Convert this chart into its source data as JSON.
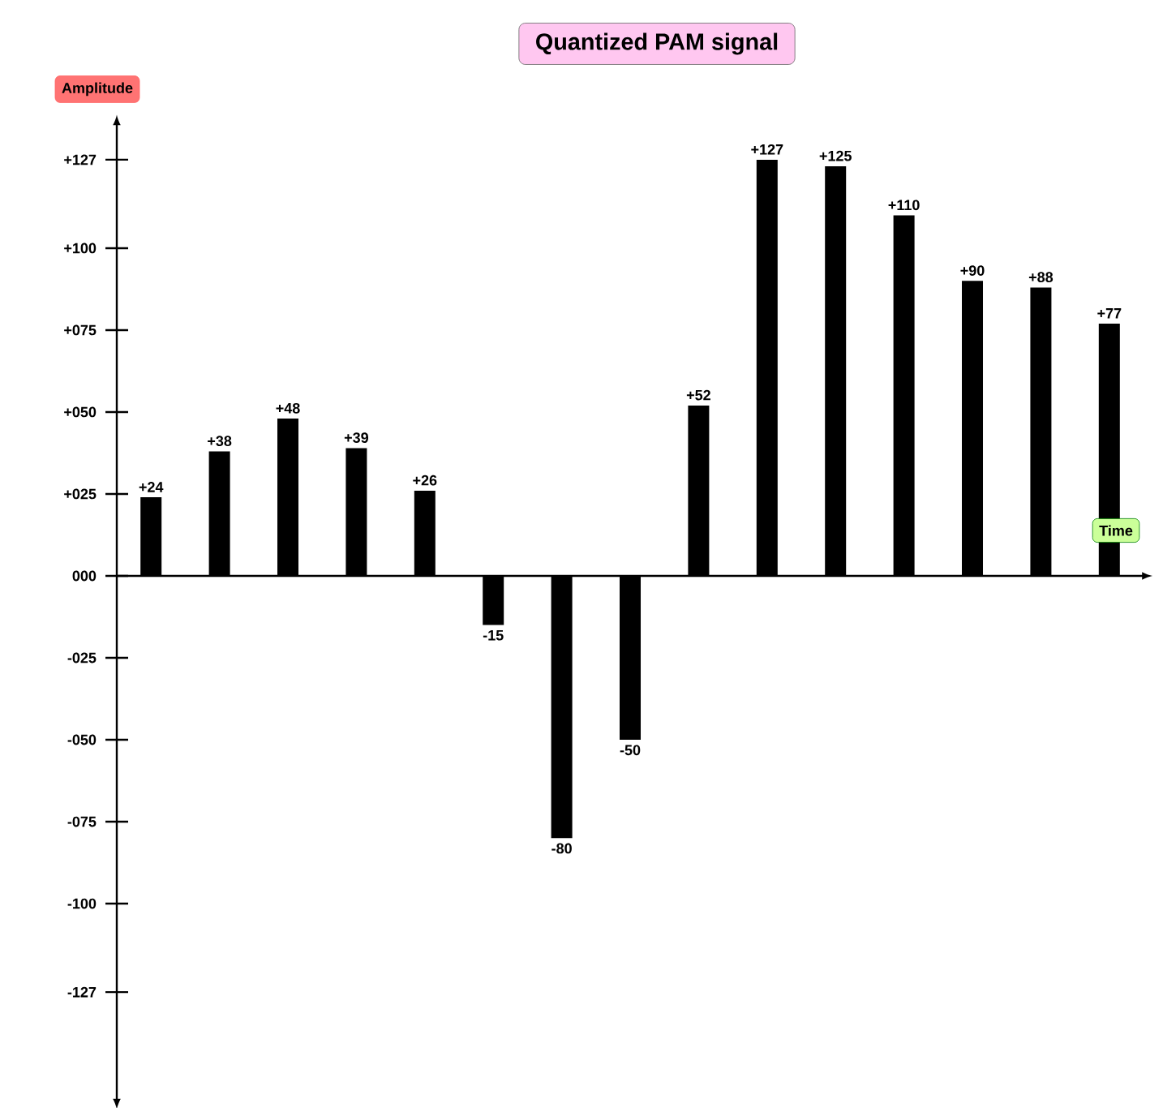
{
  "chart_data": {
    "type": "bar",
    "title": "Quantized PAM signal",
    "xlabel": "Time",
    "ylabel": "Amplitude",
    "categories": [
      null,
      null,
      null,
      null,
      null,
      null,
      null,
      null,
      null,
      null,
      null,
      null,
      null,
      null,
      null
    ],
    "values": [
      24,
      38,
      48,
      39,
      26,
      -15,
      -80,
      -50,
      52,
      127,
      125,
      110,
      90,
      88,
      77
    ],
    "value_labels": [
      "+24",
      "+38",
      "+48",
      "+39",
      "+26",
      "-15",
      "-80",
      "-50",
      "+52",
      "+127",
      "+125",
      "+110",
      "+90",
      "+88",
      "+77"
    ],
    "color": "#000000",
    "ylim": [
      -160,
      138
    ],
    "yticks": [
      {
        "value": 127,
        "label": "+127"
      },
      {
        "value": 100,
        "label": "+100"
      },
      {
        "value": 75,
        "label": "+075"
      },
      {
        "value": 50,
        "label": "+050"
      },
      {
        "value": 25,
        "label": "+025"
      },
      {
        "value": 0,
        "label": "000"
      },
      {
        "value": -25,
        "label": "-025"
      },
      {
        "value": -50,
        "label": "-050"
      },
      {
        "value": -75,
        "label": "-075"
      },
      {
        "value": -100,
        "label": "-100"
      },
      {
        "value": -127,
        "label": "-127"
      }
    ]
  }
}
